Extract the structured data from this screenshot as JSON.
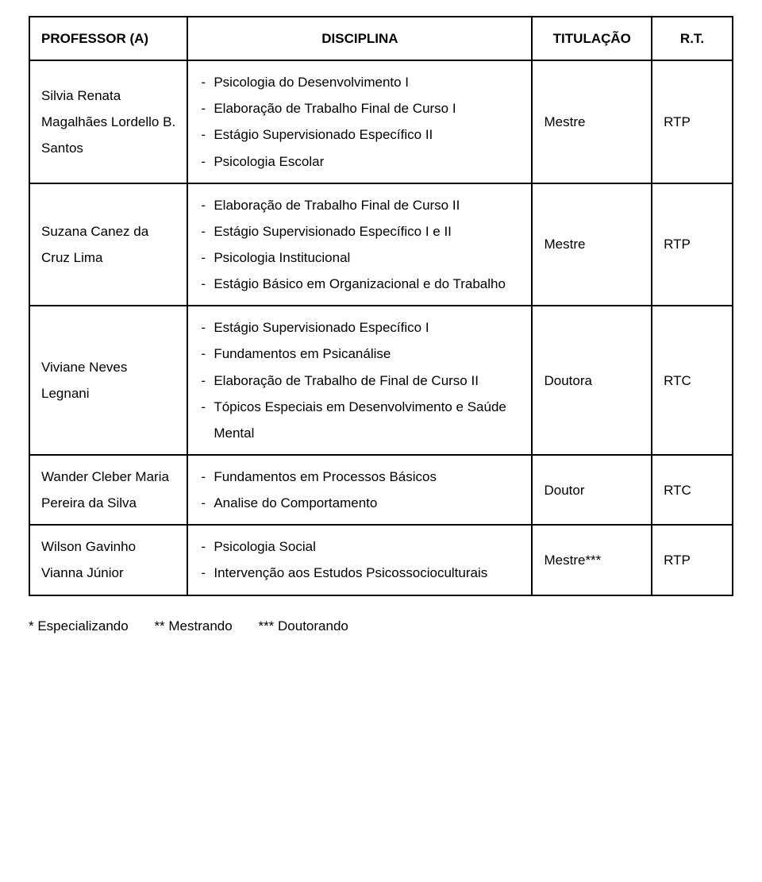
{
  "headers": {
    "professor": "PROFESSOR (A)",
    "disciplina": "DISCIPLINA",
    "titulacao": "TITULAÇÃO",
    "rt": "R.T."
  },
  "rows": [
    {
      "professor": "Silvia Renata Magalhães Lordello B. Santos",
      "disciplinas": [
        "Psicologia do Desenvolvimento I",
        "Elaboração de Trabalho Final de Curso I",
        "Estágio Supervisionado Específico II",
        "Psicologia Escolar"
      ],
      "titulacao": "Mestre",
      "rt": "RTP"
    },
    {
      "professor": "Suzana Canez da Cruz Lima",
      "disciplinas": [
        "Elaboração de Trabalho Final de Curso II",
        "Estágio Supervisionado Específico I e II",
        "Psicologia Institucional",
        "Estágio Básico em Organizacional e do Trabalho"
      ],
      "titulacao": "Mestre",
      "rt": "RTP"
    },
    {
      "professor": "Viviane Neves Legnani",
      "disciplinas": [
        "Estágio Supervisionado Específico I",
        "Fundamentos em Psicanálise",
        "Elaboração de Trabalho de Final de Curso II",
        "Tópicos Especiais em Desenvolvimento e Saúde Mental"
      ],
      "titulacao": "Doutora",
      "rt": "RTC"
    },
    {
      "professor": "Wander Cleber Maria Pereira da Silva",
      "disciplinas": [
        "Fundamentos em Processos Básicos",
        "Analise do Comportamento"
      ],
      "titulacao": "Doutor",
      "rt": "RTC"
    },
    {
      "professor": "Wilson Gavinho Vianna Júnior",
      "disciplinas": [
        "Psicologia Social",
        "Intervenção aos Estudos Psicossocioculturais"
      ],
      "titulacao": "Mestre***",
      "rt": "RTP"
    }
  ],
  "footer": {
    "note1": "* Especializando",
    "note2": "** Mestrando",
    "note3": "*** Doutorando"
  },
  "style": {
    "border_color": "#000000",
    "background_color": "#ffffff",
    "text_color": "#000000",
    "font_family": "Verdana",
    "font_size_pt": 13,
    "cell_line_height": 1.95,
    "col_widths_pct": [
      22.5,
      49,
      17,
      11.5
    ]
  }
}
